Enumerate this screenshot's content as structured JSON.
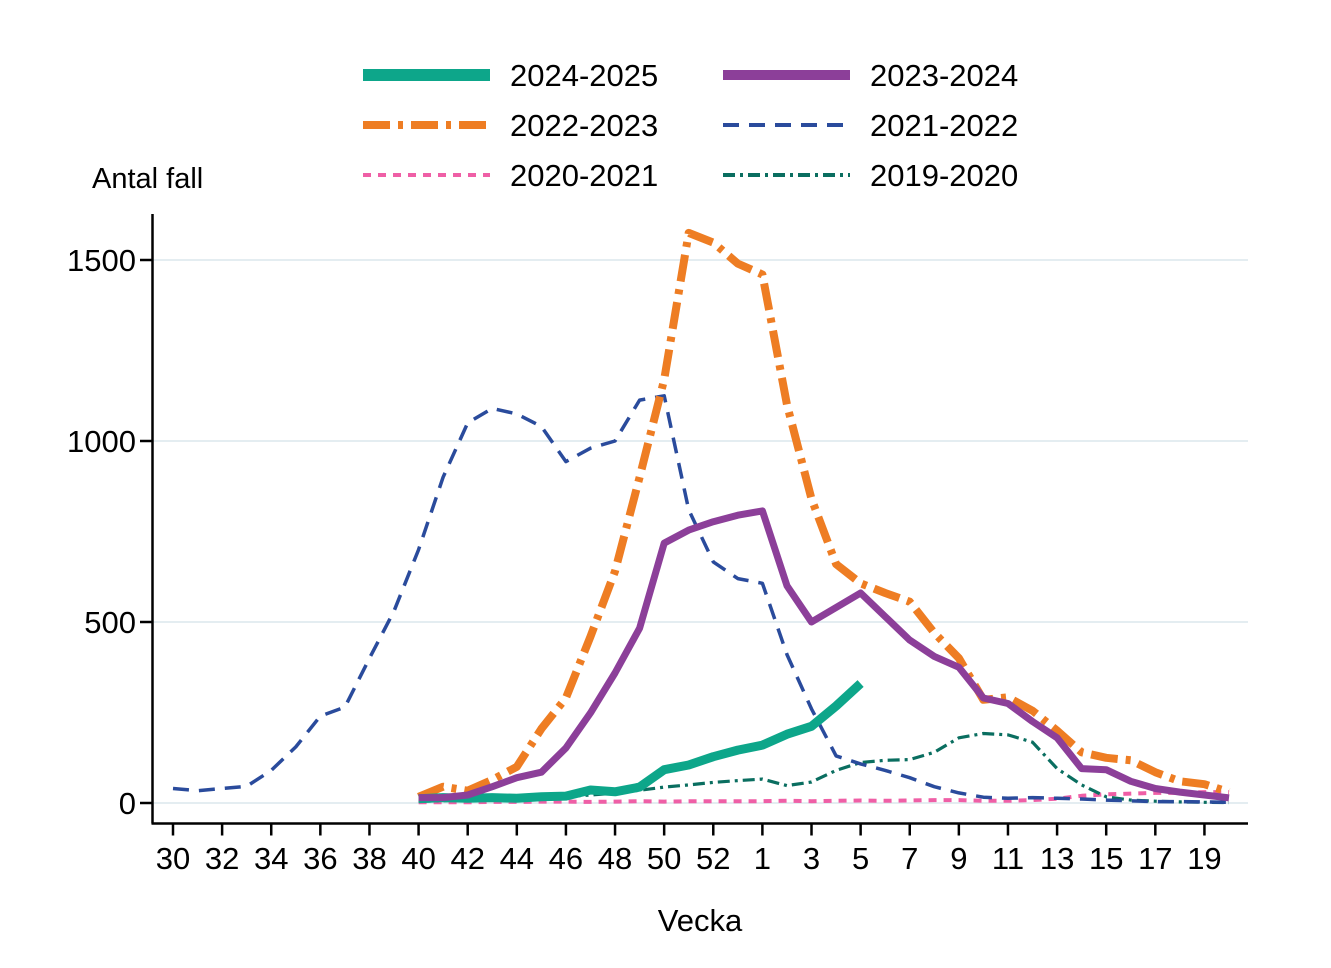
{
  "figure": {
    "y_axis_title": "Antal fall",
    "x_axis_title": "Vecka",
    "background": "#ffffff",
    "axis_color": "#000000",
    "gridline_color": "#e4edf1",
    "text_color": "#000000"
  },
  "chart_data": {
    "type": "line",
    "title": "",
    "xlabel": "Vecka",
    "ylabel": "Antal fall",
    "grid": "horizontal",
    "legend_position": "top",
    "x_axis": {
      "tick_weeks": [
        30,
        32,
        34,
        36,
        38,
        40,
        42,
        44,
        46,
        48,
        50,
        52,
        1,
        3,
        5,
        7,
        9,
        11,
        13,
        15,
        17,
        19
      ],
      "week_order_note": "weeks 30-53 then 1-20"
    },
    "y_axis": {
      "ticks": [
        0,
        500,
        1000,
        1500
      ],
      "range": [
        0,
        1680
      ]
    },
    "z_order": [
      "2020-2021",
      "2019-2020",
      "2021-2022",
      "2022-2023",
      "2024-2025",
      "2023-2024"
    ],
    "series": [
      {
        "name": "2024-2025",
        "color": "#0DA68A",
        "dasharray": "",
        "width": 9,
        "data": [
          [
            40,
            12
          ],
          [
            41,
            15
          ],
          [
            42,
            13
          ],
          [
            43,
            15
          ],
          [
            44,
            13
          ],
          [
            45,
            17
          ],
          [
            46,
            19
          ],
          [
            47,
            36
          ],
          [
            48,
            31
          ],
          [
            49,
            44
          ],
          [
            50,
            92
          ],
          [
            51,
            105
          ],
          [
            52,
            128
          ],
          [
            53,
            146
          ],
          [
            1,
            160
          ],
          [
            2,
            190
          ],
          [
            3,
            212
          ],
          [
            4,
            268
          ],
          [
            5,
            330
          ]
        ]
      },
      {
        "name": "2023-2024",
        "color": "#8C3F99",
        "dasharray": "",
        "width": 7,
        "data": [
          [
            40,
            15
          ],
          [
            41,
            15
          ],
          [
            42,
            22
          ],
          [
            43,
            45
          ],
          [
            44,
            70
          ],
          [
            45,
            85
          ],
          [
            46,
            152
          ],
          [
            47,
            249
          ],
          [
            48,
            359
          ],
          [
            49,
            483
          ],
          [
            50,
            718
          ],
          [
            51,
            754
          ],
          [
            52,
            777
          ],
          [
            53,
            795
          ],
          [
            1,
            807
          ],
          [
            2,
            600
          ],
          [
            3,
            500
          ],
          [
            4,
            540
          ],
          [
            5,
            580
          ],
          [
            6,
            515
          ],
          [
            7,
            450
          ],
          [
            8,
            405
          ],
          [
            9,
            375
          ],
          [
            10,
            290
          ],
          [
            11,
            275
          ],
          [
            12,
            225
          ],
          [
            13,
            180
          ],
          [
            14,
            95
          ],
          [
            15,
            92
          ],
          [
            16,
            60
          ],
          [
            17,
            40
          ],
          [
            18,
            30
          ],
          [
            19,
            22
          ],
          [
            20,
            14
          ]
        ]
      },
      {
        "name": "2022-2023",
        "color": "#EE7D23",
        "dasharray": "27 8 5 8",
        "width": 8,
        "data": [
          [
            40,
            17
          ],
          [
            41,
            45
          ],
          [
            42,
            34
          ],
          [
            43,
            64
          ],
          [
            44,
            100
          ],
          [
            45,
            205
          ],
          [
            46,
            290
          ],
          [
            47,
            460
          ],
          [
            48,
            640
          ],
          [
            49,
            900
          ],
          [
            50,
            1170
          ],
          [
            51,
            1575
          ],
          [
            52,
            1548
          ],
          [
            53,
            1490
          ],
          [
            1,
            1460
          ],
          [
            2,
            1100
          ],
          [
            3,
            840
          ],
          [
            4,
            660
          ],
          [
            5,
            607
          ],
          [
            6,
            580
          ],
          [
            7,
            556
          ],
          [
            8,
            470
          ],
          [
            9,
            400
          ],
          [
            10,
            285
          ],
          [
            11,
            292
          ],
          [
            12,
            255
          ],
          [
            13,
            200
          ],
          [
            14,
            140
          ],
          [
            15,
            125
          ],
          [
            16,
            118
          ],
          [
            17,
            85
          ],
          [
            18,
            60
          ],
          [
            19,
            52
          ],
          [
            20,
            30
          ]
        ]
      },
      {
        "name": "2021-2022",
        "color": "#2A4B9C",
        "dasharray": "16 10",
        "width": 3.5,
        "data": [
          [
            30,
            40
          ],
          [
            31,
            34
          ],
          [
            32,
            40
          ],
          [
            33,
            46
          ],
          [
            34,
            90
          ],
          [
            35,
            155
          ],
          [
            36,
            240
          ],
          [
            37,
            265
          ],
          [
            38,
            400
          ],
          [
            39,
            530
          ],
          [
            40,
            700
          ],
          [
            41,
            900
          ],
          [
            42,
            1050
          ],
          [
            43,
            1090
          ],
          [
            44,
            1075
          ],
          [
            45,
            1040
          ],
          [
            46,
            943
          ],
          [
            47,
            980
          ],
          [
            48,
            1000
          ],
          [
            49,
            1113
          ],
          [
            50,
            1125
          ],
          [
            51,
            810
          ],
          [
            52,
            666
          ],
          [
            53,
            620
          ],
          [
            1,
            607
          ],
          [
            2,
            410
          ],
          [
            3,
            260
          ],
          [
            4,
            130
          ],
          [
            5,
            108
          ],
          [
            6,
            90
          ],
          [
            7,
            70
          ],
          [
            8,
            45
          ],
          [
            9,
            28
          ],
          [
            10,
            16
          ],
          [
            11,
            13
          ],
          [
            12,
            15
          ],
          [
            13,
            13
          ],
          [
            14,
            11
          ],
          [
            15,
            8
          ],
          [
            16,
            6
          ],
          [
            17,
            4
          ],
          [
            18,
            4
          ],
          [
            19,
            3
          ],
          [
            20,
            2
          ]
        ]
      },
      {
        "name": "2020-2021",
        "color": "#EF5FA6",
        "dasharray": "8 7",
        "width": 4,
        "data": [
          [
            40,
            2
          ],
          [
            41,
            2
          ],
          [
            42,
            2
          ],
          [
            43,
            3
          ],
          [
            44,
            3
          ],
          [
            45,
            4
          ],
          [
            46,
            4
          ],
          [
            47,
            3
          ],
          [
            48,
            4
          ],
          [
            49,
            5
          ],
          [
            50,
            4
          ],
          [
            51,
            5
          ],
          [
            52,
            5
          ],
          [
            53,
            5
          ],
          [
            1,
            5
          ],
          [
            2,
            6
          ],
          [
            3,
            5
          ],
          [
            4,
            6
          ],
          [
            5,
            7
          ],
          [
            6,
            6
          ],
          [
            7,
            7
          ],
          [
            8,
            8
          ],
          [
            9,
            8
          ],
          [
            10,
            6
          ],
          [
            11,
            6
          ],
          [
            12,
            8
          ],
          [
            13,
            12
          ],
          [
            14,
            20
          ],
          [
            15,
            24
          ],
          [
            16,
            26
          ],
          [
            17,
            28
          ],
          [
            18,
            28
          ],
          [
            19,
            30
          ],
          [
            20,
            30
          ]
        ]
      },
      {
        "name": "2019-2020",
        "color": "#0A6E60",
        "dasharray": "12 5 3 5",
        "width": 3.2,
        "data": [
          [
            40,
            5
          ],
          [
            41,
            6
          ],
          [
            42,
            8
          ],
          [
            43,
            10
          ],
          [
            44,
            12
          ],
          [
            45,
            15
          ],
          [
            46,
            18
          ],
          [
            47,
            22
          ],
          [
            48,
            27
          ],
          [
            49,
            35
          ],
          [
            50,
            44
          ],
          [
            51,
            50
          ],
          [
            52,
            57
          ],
          [
            53,
            62
          ],
          [
            1,
            66
          ],
          [
            2,
            48
          ],
          [
            3,
            58
          ],
          [
            4,
            90
          ],
          [
            5,
            112
          ],
          [
            6,
            118
          ],
          [
            7,
            120
          ],
          [
            8,
            140
          ],
          [
            9,
            180
          ],
          [
            10,
            192
          ],
          [
            11,
            188
          ],
          [
            12,
            168
          ],
          [
            13,
            95
          ],
          [
            14,
            50
          ],
          [
            15,
            17
          ],
          [
            16,
            8
          ],
          [
            17,
            5
          ],
          [
            18,
            3
          ],
          [
            19,
            2
          ],
          [
            20,
            1
          ]
        ]
      }
    ]
  }
}
